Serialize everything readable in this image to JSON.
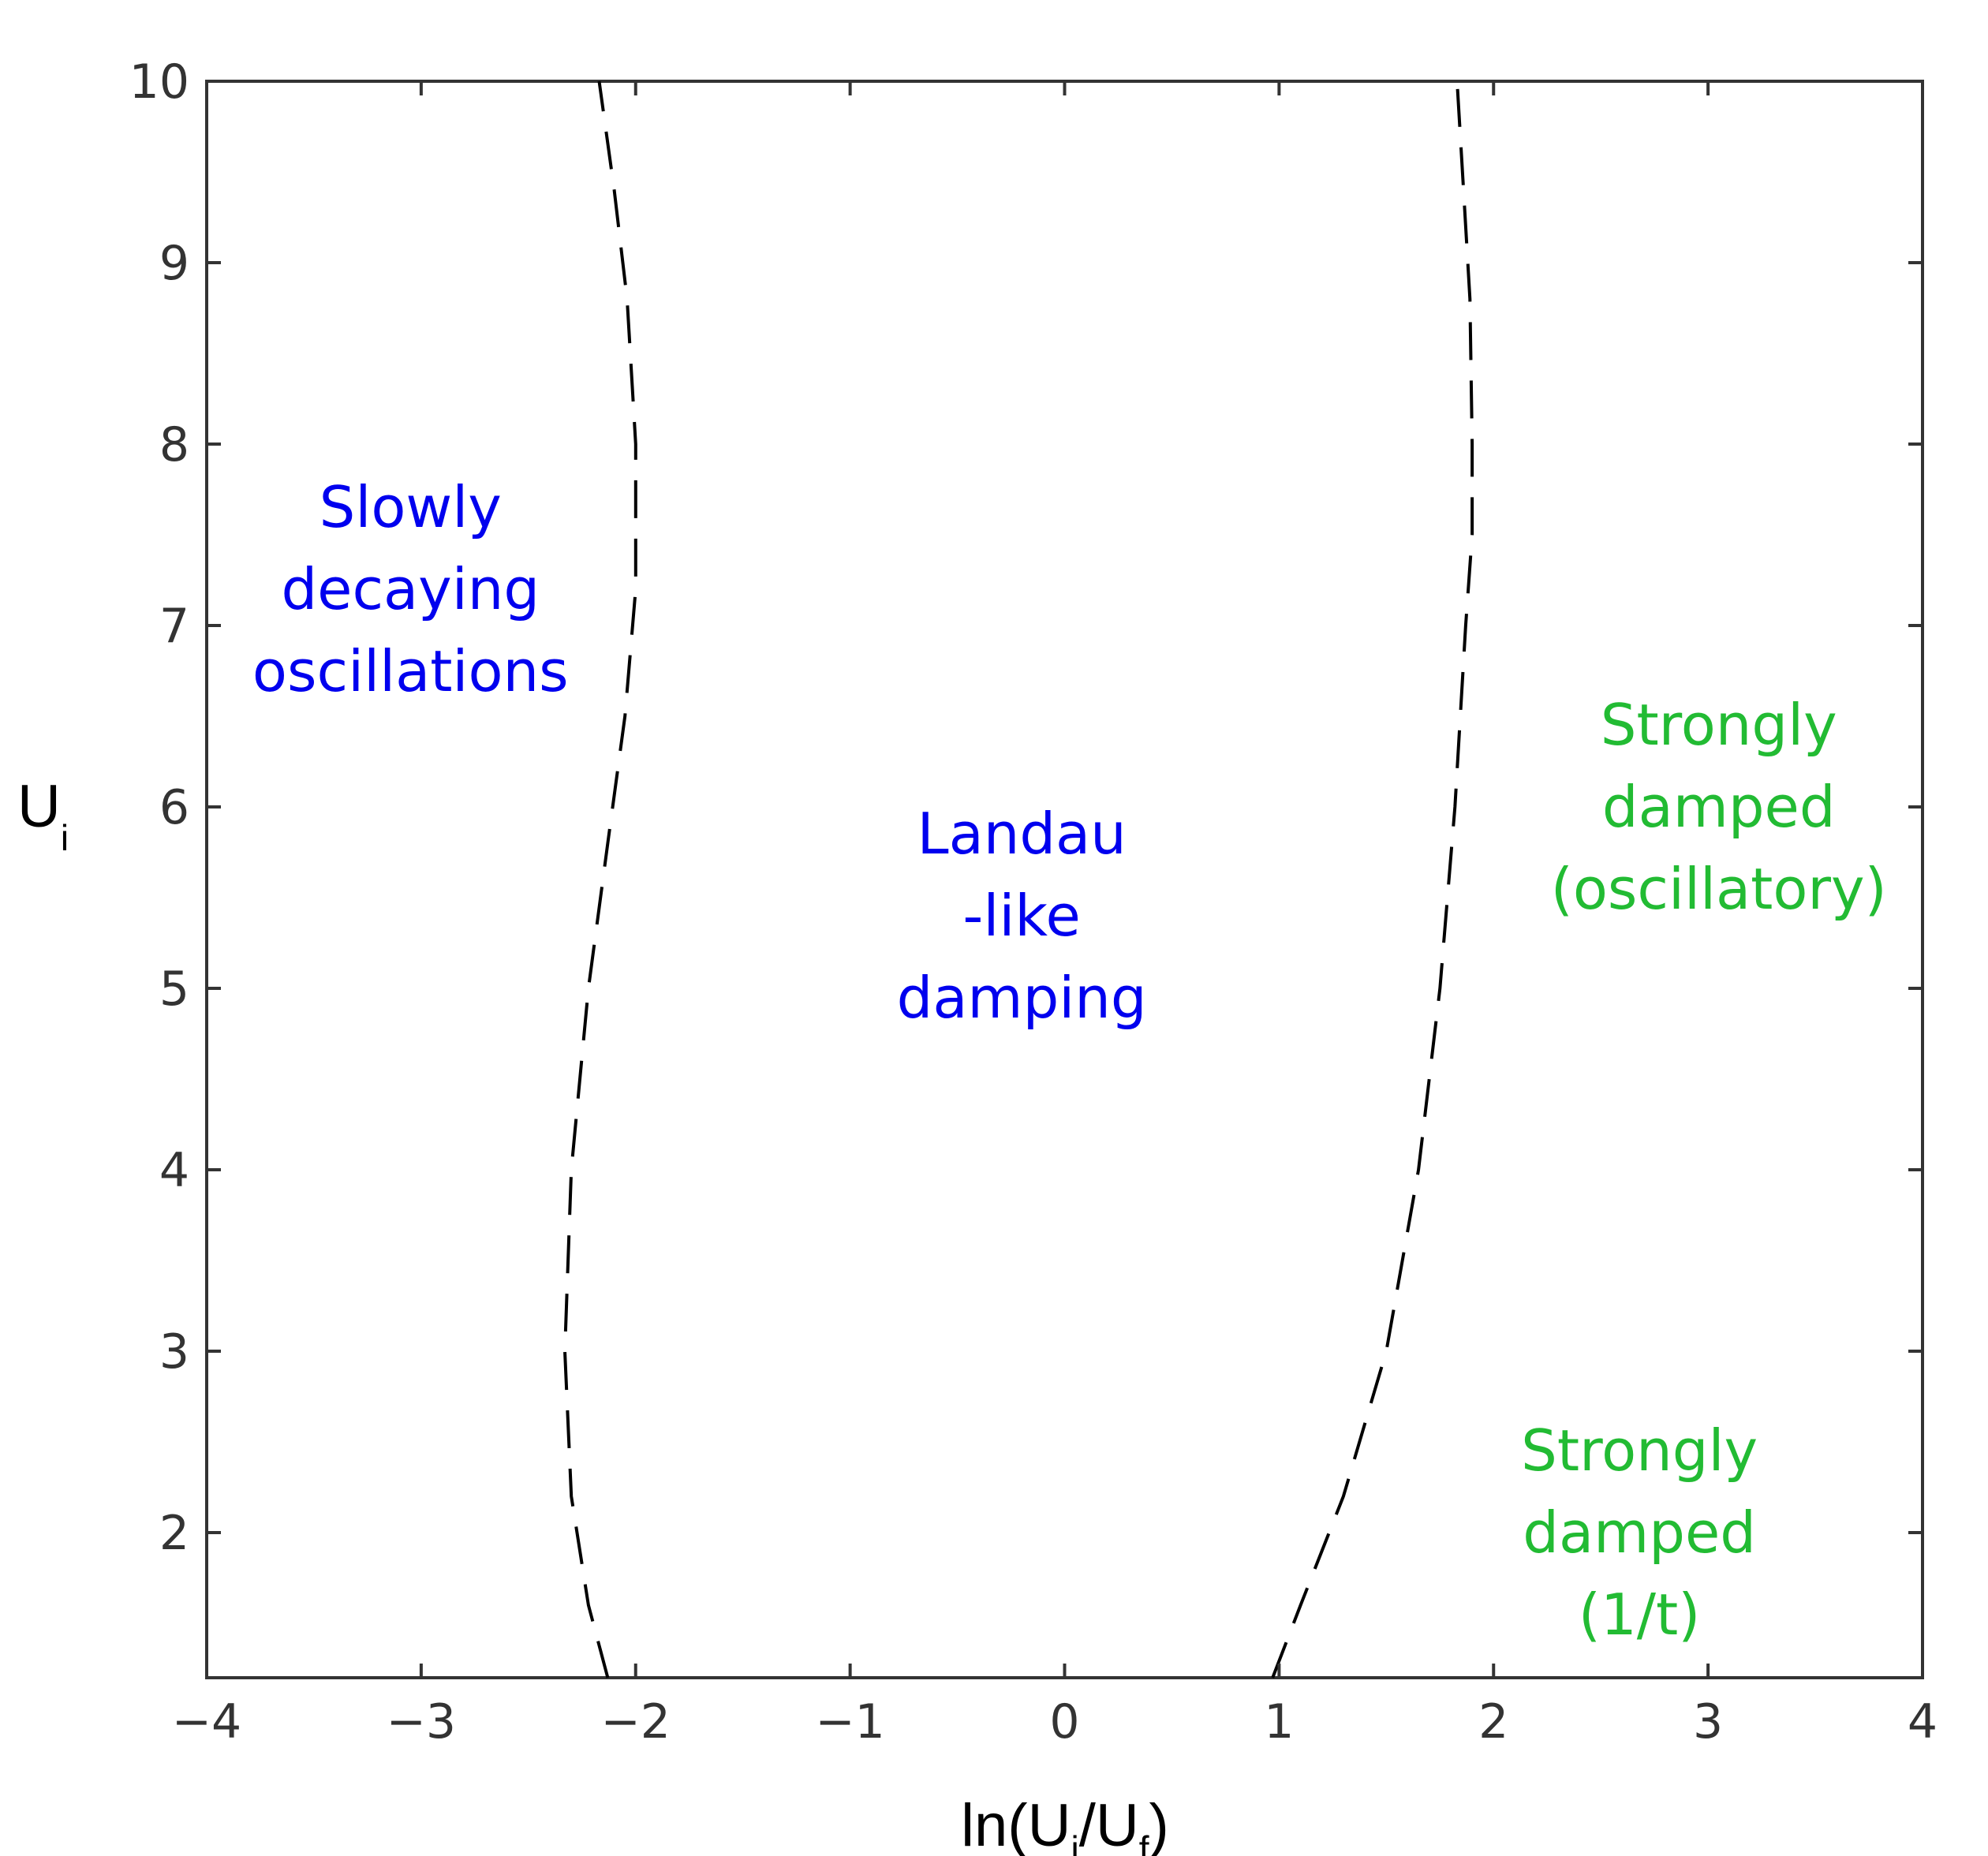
{
  "chart_data": {
    "type": "line",
    "xlabel": {
      "text": "ln(U",
      "sub1": "i",
      "mid": "/U",
      "sub2": "f",
      "end": ")"
    },
    "ylabel": {
      "text": "U",
      "sub": "i"
    },
    "xlim": [
      -4,
      4
    ],
    "ylim": [
      1.2,
      10
    ],
    "xticks": [
      -4,
      -3,
      -2,
      -1,
      0,
      1,
      2,
      3,
      4
    ],
    "xtick_labels": [
      "−4",
      "−3",
      "−2",
      "−1",
      "0",
      "1",
      "2",
      "3",
      "4"
    ],
    "yticks": [
      2,
      3,
      4,
      5,
      6,
      7,
      8,
      9,
      10
    ],
    "ytick_labels": [
      "2",
      "3",
      "4",
      "5",
      "6",
      "7",
      "8",
      "9",
      "10"
    ],
    "grid": false,
    "series": [
      {
        "style": "dashed",
        "color": "#000000",
        "x": [
          -2.13,
          -2.22,
          -2.3,
          -2.33,
          -2.3,
          -2.22,
          -2.13,
          -2.05,
          -2.0,
          -2.0,
          -2.04,
          -2.1,
          -2.17
        ],
        "y": [
          1.2,
          1.6,
          2.2,
          3.0,
          4.0,
          5.0,
          5.8,
          6.5,
          7.2,
          8.0,
          8.8,
          9.4,
          10.0
        ]
      },
      {
        "style": "dashed",
        "color": "#000000",
        "x": [
          0.97,
          1.1,
          1.3,
          1.5,
          1.65,
          1.75,
          1.82,
          1.87,
          1.9,
          1.9,
          1.89,
          1.86,
          1.83
        ],
        "y": [
          1.2,
          1.6,
          2.2,
          3.0,
          4.0,
          5.0,
          6.0,
          7.0,
          7.5,
          8.0,
          8.8,
          9.4,
          10.0
        ]
      }
    ],
    "annotations": [
      {
        "lines": [
          "Slowly",
          "decaying",
          "oscillations"
        ],
        "x": -3.05,
        "y": 7.2,
        "color": "#0000ee"
      },
      {
        "lines": [
          "Landau",
          "-like",
          "damping"
        ],
        "x": -0.2,
        "y": 5.4,
        "color": "#0000ee"
      },
      {
        "lines": [
          "Strongly",
          "damped",
          "(oscillatory)"
        ],
        "x": 3.05,
        "y": 6.0,
        "color": "#22bb33"
      },
      {
        "lines": [
          "Strongly",
          "damped",
          "(1/t)"
        ],
        "x": 2.68,
        "y": 2.0,
        "color": "#22bb33"
      }
    ]
  }
}
